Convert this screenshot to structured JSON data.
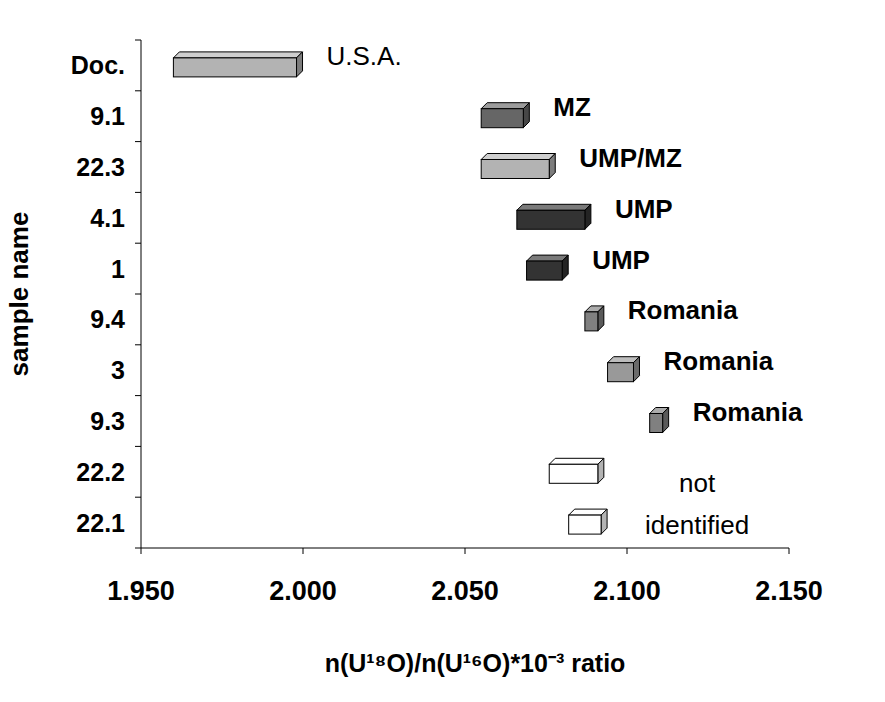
{
  "chart_data": {
    "type": "floating_bar",
    "orientation": "horizontal",
    "x_label": "n(U¹⁸O)/n(U¹⁶O)*10⁻³ ratio",
    "y_label": "sample name",
    "categories": [
      "Doc.",
      "9.1",
      "22.3",
      "4.1",
      "1",
      "9.4",
      "3",
      "9.3",
      "22.2",
      "22.1"
    ],
    "values": [
      [
        1.96,
        1.998
      ],
      [
        2.055,
        2.068
      ],
      [
        2.055,
        2.076
      ],
      [
        2.066,
        2.087
      ],
      [
        2.069,
        2.08
      ],
      [
        2.087,
        2.091
      ],
      [
        2.094,
        2.102
      ],
      [
        2.107,
        2.111
      ],
      [
        2.076,
        2.091
      ],
      [
        2.082,
        2.092
      ]
    ],
    "bar_labels": [
      "U.S.A.",
      "MZ",
      "UMP/MZ",
      "UMP",
      "UMP",
      "Romania",
      "Romania",
      "Romania",
      "not identified",
      null
    ],
    "colors": [
      "#b3b3b3",
      "#666666",
      "#b3b3b3",
      "#333333",
      "#333333",
      "#808080",
      "#999999",
      "#808080",
      "#ffffff",
      "#ffffff"
    ],
    "xlim": [
      1.95,
      2.15
    ],
    "xticks": [
      {
        "value": 1.95,
        "label": "1.950"
      },
      {
        "value": 2.0,
        "label": "2.000"
      },
      {
        "value": 2.05,
        "label": "2.050"
      },
      {
        "value": 2.1,
        "label": "2.100"
      },
      {
        "value": 2.15,
        "label": "2.150"
      }
    ],
    "grid": false
  }
}
